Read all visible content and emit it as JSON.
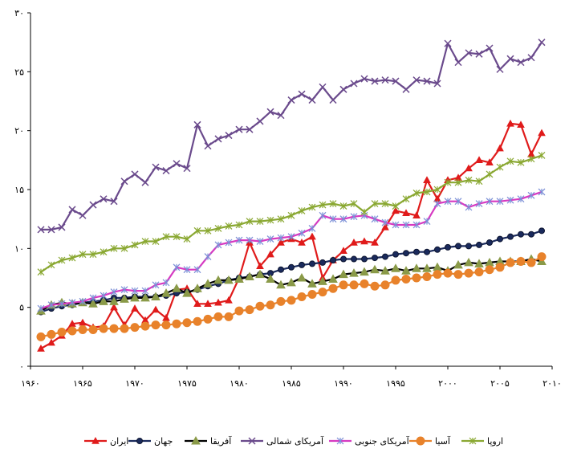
{
  "chart_data": {
    "type": "line",
    "ylim": [
      0,
      30
    ],
    "xlim": [
      1960,
      2010
    ],
    "yticks": [
      "۰",
      "۵",
      "۱۰",
      "۱۵",
      "۲۰",
      "۲۵",
      "۳۰"
    ],
    "xticks": [
      "۱۹۶۰",
      "۱۹۶۵",
      "۱۹۷۰",
      "۱۹۷۵",
      "۱۹۸۰",
      "۱۹۸۵",
      "۱۹۹۰",
      "۱۹۹۵",
      "۲۰۰۰",
      "۲۰۰۵",
      "۲۰۱۰"
    ],
    "grid": "none",
    "legend": "bottom",
    "x": [
      1961,
      1962,
      1963,
      1964,
      1965,
      1966,
      1967,
      1968,
      1969,
      1970,
      1971,
      1972,
      1973,
      1974,
      1975,
      1976,
      1977,
      1978,
      1979,
      1980,
      1981,
      1982,
      1983,
      1984,
      1985,
      1986,
      1987,
      1988,
      1989,
      1990,
      1991,
      1992,
      1993,
      1994,
      1995,
      1996,
      1997,
      1998,
      1999,
      2000,
      2001,
      2002,
      2003,
      2004,
      2005,
      2006,
      2007,
      2008,
      2009
    ],
    "series": [
      {
        "name": "ایران",
        "color": "#e01b1b",
        "marker": "triangle",
        "values": [
          1.5,
          2.0,
          2.6,
          3.6,
          3.7,
          3.3,
          3.4,
          5.0,
          3.5,
          4.9,
          3.9,
          4.8,
          4.1,
          6.5,
          6.6,
          5.3,
          5.3,
          5.4,
          5.6,
          7.5,
          10.5,
          8.5,
          9.5,
          10.5,
          10.8,
          10.5,
          11.0,
          7.5,
          9.0,
          9.8,
          10.5,
          10.6,
          10.5,
          11.8,
          13.2,
          13.0,
          12.8,
          15.8,
          14.2,
          15.8,
          16.0,
          16.8,
          17.5,
          17.3,
          18.5,
          20.6,
          20.5,
          18.0,
          19.8
        ]
      },
      {
        "name": "جهان",
        "color": "#1a2a5c",
        "marker": "circle",
        "values": [
          4.6,
          4.9,
          5.1,
          5.2,
          5.4,
          5.5,
          5.6,
          5.8,
          5.8,
          5.9,
          5.9,
          5.9,
          6.0,
          6.2,
          6.3,
          6.5,
          6.8,
          7.0,
          7.3,
          7.5,
          7.6,
          7.8,
          7.9,
          8.2,
          8.4,
          8.6,
          8.7,
          8.8,
          9.0,
          9.1,
          9.1,
          9.1,
          9.2,
          9.3,
          9.5,
          9.6,
          9.7,
          9.7,
          9.9,
          10.1,
          10.2,
          10.2,
          10.3,
          10.5,
          10.8,
          11.0,
          11.2,
          11.2,
          11.5
        ]
      },
      {
        "name": "آفریقا",
        "color": "#000000",
        "marker": "triangle-olive",
        "values": [
          4.7,
          5.2,
          5.4,
          5.3,
          5.4,
          5.3,
          5.5,
          5.5,
          5.7,
          5.8,
          5.8,
          5.9,
          6.2,
          6.6,
          6.2,
          6.6,
          7.0,
          7.3,
          7.3,
          7.4,
          7.6,
          7.8,
          7.4,
          6.9,
          7.1,
          7.5,
          7.0,
          7.2,
          7.4,
          7.8,
          7.9,
          8.0,
          8.2,
          8.1,
          8.3,
          8.1,
          8.3,
          8.3,
          8.4,
          8.1,
          8.6,
          8.8,
          8.7,
          8.8,
          8.9,
          8.9,
          8.9,
          9.1,
          8.9
        ]
      },
      {
        "name": "آمریکای شمالی",
        "color": "#6a4a8c",
        "marker": "cross",
        "values": [
          11.6,
          11.6,
          11.8,
          13.3,
          12.8,
          13.7,
          14.2,
          14.0,
          15.7,
          16.3,
          15.6,
          16.9,
          16.6,
          17.2,
          16.8,
          20.5,
          18.7,
          19.3,
          19.6,
          20.1,
          20.1,
          20.8,
          21.6,
          21.3,
          22.6,
          23.1,
          22.6,
          23.7,
          22.6,
          23.5,
          24.0,
          24.4,
          24.2,
          24.3,
          24.2,
          23.5,
          24.3,
          24.2,
          24.0,
          27.4,
          25.8,
          26.6,
          26.5,
          27.0,
          25.2,
          26.1,
          25.8,
          26.2,
          27.5
        ]
      },
      {
        "name": "آمریکای جنوبی",
        "color": "#d63ac2",
        "marker": "star",
        "values": [
          4.9,
          5.2,
          5.3,
          5.4,
          5.5,
          5.8,
          6.0,
          6.3,
          6.5,
          6.4,
          6.4,
          6.9,
          7.1,
          8.4,
          8.2,
          8.2,
          9.3,
          10.3,
          10.5,
          10.7,
          10.7,
          10.6,
          10.8,
          10.9,
          11.0,
          11.3,
          11.7,
          12.8,
          12.5,
          12.5,
          12.7,
          12.8,
          12.5,
          12.2,
          12.0,
          12.0,
          12.0,
          12.3,
          13.8,
          14.0,
          14.0,
          13.5,
          13.8,
          14.0,
          14.0,
          14.1,
          14.2,
          14.5,
          14.8
        ]
      },
      {
        "name": "آسیا",
        "color": "#e8822b",
        "marker": "circle-orange",
        "values": [
          2.5,
          2.7,
          2.9,
          3.0,
          3.1,
          3.1,
          3.2,
          3.2,
          3.2,
          3.3,
          3.4,
          3.5,
          3.5,
          3.6,
          3.7,
          3.8,
          4.0,
          4.2,
          4.2,
          4.7,
          4.8,
          5.1,
          5.2,
          5.5,
          5.6,
          5.9,
          6.1,
          6.3,
          6.6,
          6.9,
          6.9,
          7.0,
          6.8,
          6.9,
          7.3,
          7.4,
          7.5,
          7.6,
          7.8,
          7.9,
          7.8,
          7.9,
          8.0,
          8.2,
          8.4,
          8.8,
          8.9,
          8.8,
          9.3
        ]
      },
      {
        "name": "اروپا",
        "color": "#8aa832",
        "marker": "star-green",
        "values": [
          8.0,
          8.6,
          9.0,
          9.2,
          9.5,
          9.5,
          9.7,
          10.0,
          10.0,
          10.3,
          10.6,
          10.6,
          11.0,
          11.0,
          10.8,
          11.5,
          11.5,
          11.7,
          11.9,
          12.0,
          12.3,
          12.3,
          12.4,
          12.5,
          12.8,
          13.2,
          13.5,
          13.7,
          13.8,
          13.6,
          13.8,
          13.1,
          13.8,
          13.8,
          13.6,
          14.2,
          14.7,
          14.8,
          15.0,
          15.6,
          15.6,
          15.8,
          15.7,
          16.3,
          16.9,
          17.4,
          17.3,
          17.6,
          17.9
        ]
      }
    ]
  }
}
